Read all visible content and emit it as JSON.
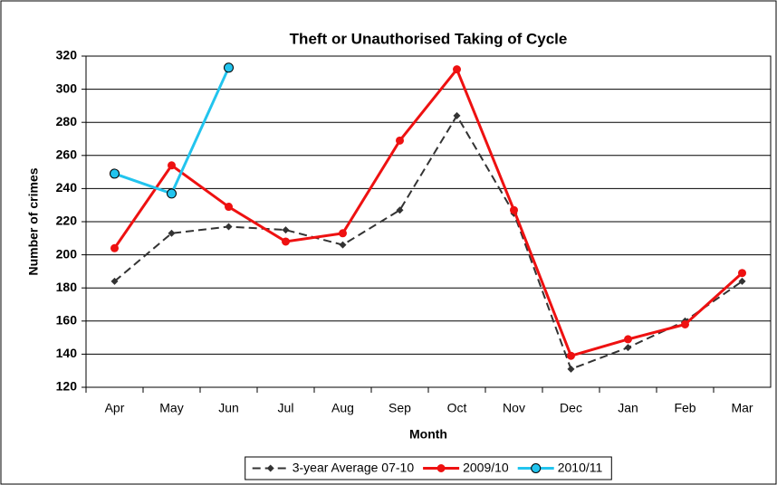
{
  "chart_data": {
    "type": "line",
    "title": "Theft or Unauthorised Taking of Cycle",
    "x_label": "Month",
    "y_label": "Number of crimes",
    "categories": [
      "Apr",
      "May",
      "Jun",
      "Jul",
      "Aug",
      "Sep",
      "Oct",
      "Nov",
      "Dec",
      "Jan",
      "Feb",
      "Mar"
    ],
    "series": [
      {
        "name": "3-year Average 07-10",
        "color": "#333333",
        "dash": true,
        "marker": "diamond",
        "values": [
          184,
          213,
          217,
          215,
          206,
          227,
          284,
          225,
          131,
          144,
          160,
          184
        ]
      },
      {
        "name": "2009/10",
        "color": "#ee1111",
        "dash": false,
        "marker": "circle",
        "values": [
          204,
          254,
          229,
          208,
          213,
          269,
          312,
          227,
          139,
          149,
          158,
          189
        ]
      },
      {
        "name": "2010/11",
        "color": "#22c4ee",
        "dash": false,
        "marker": "circle-outlined",
        "values": [
          249,
          237,
          313,
          null,
          null,
          null,
          null,
          null,
          null,
          null,
          null,
          null
        ]
      }
    ],
    "ylim": [
      120,
      320
    ],
    "yticks": [
      120,
      140,
      160,
      180,
      200,
      220,
      240,
      260,
      280,
      300,
      320
    ],
    "grid": true,
    "legend": "bottom"
  }
}
